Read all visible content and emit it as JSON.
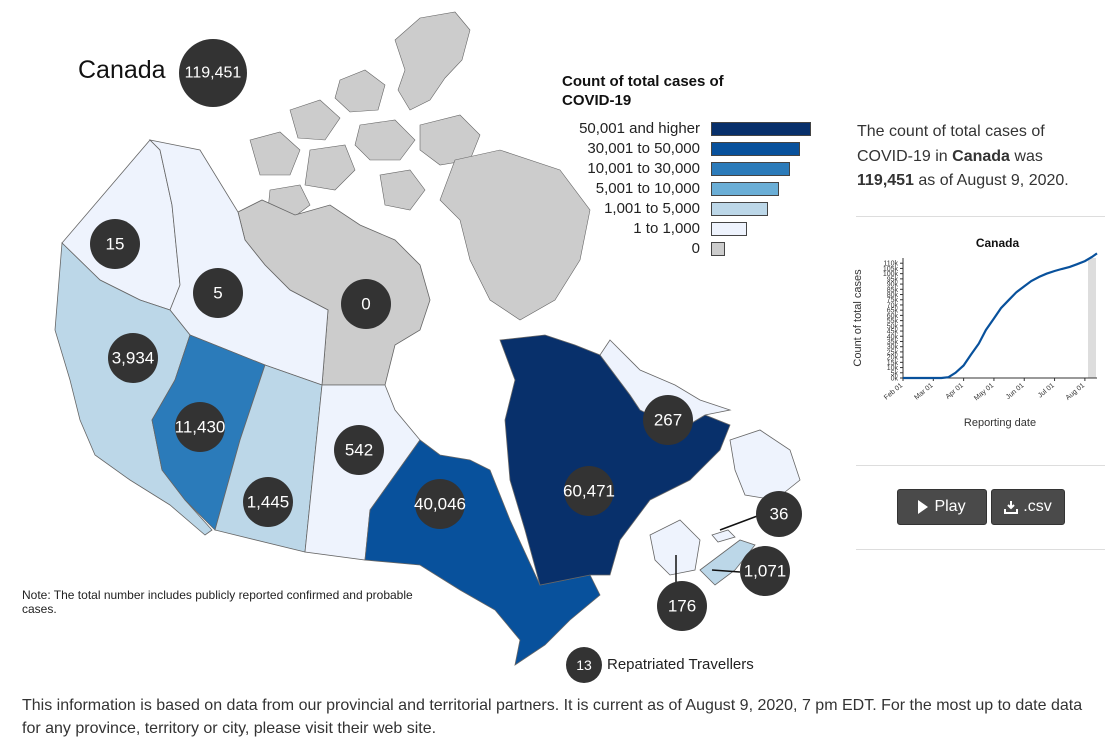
{
  "title": "Canada",
  "total_badge": "119,451",
  "legend": {
    "title": "Count of total cases of COVID-19",
    "items": [
      {
        "label": "50,001 and higher",
        "color": "#08306b",
        "bar_ratio": 1.0
      },
      {
        "label": "30,001 to 50,000",
        "color": "#08519c",
        "bar_ratio": 0.89
      },
      {
        "label": "10,001 to 30,000",
        "color": "#2b7bba",
        "bar_ratio": 0.79
      },
      {
        "label": "5,001 to 10,000",
        "color": "#6aaed6",
        "bar_ratio": 0.68
      },
      {
        "label": "1,001 to 5,000",
        "color": "#bcd7e8",
        "bar_ratio": 0.57
      },
      {
        "label": "1 to 1,000",
        "color": "#eef3fd",
        "bar_ratio": 0.36
      },
      {
        "label": "0",
        "color": "#cccccc",
        "bar_ratio": 0.14
      }
    ]
  },
  "regions": [
    {
      "name": "Yukon",
      "value": "15",
      "color": "#eef3fd"
    },
    {
      "name": "Northwest Territories",
      "value": "5",
      "color": "#eef3fd"
    },
    {
      "name": "Nunavut",
      "value": "0",
      "color": "#cccccc"
    },
    {
      "name": "British Columbia",
      "value": "3,934",
      "color": "#bcd7e8"
    },
    {
      "name": "Alberta",
      "value": "11,430",
      "color": "#2b7bba"
    },
    {
      "name": "Saskatchewan",
      "value": "1,445",
      "color": "#bcd7e8"
    },
    {
      "name": "Manitoba",
      "value": "542",
      "color": "#eef3fd"
    },
    {
      "name": "Ontario",
      "value": "40,046",
      "color": "#08519c"
    },
    {
      "name": "Quebec",
      "value": "60,471",
      "color": "#08306b"
    },
    {
      "name": "Newfoundland and Labrador",
      "value": "267",
      "color": "#eef3fd"
    },
    {
      "name": "Prince Edward Island",
      "value": "36",
      "color": "#eef3fd"
    },
    {
      "name": "Nova Scotia",
      "value": "1,071",
      "color": "#bcd7e8"
    },
    {
      "name": "New Brunswick",
      "value": "176",
      "color": "#eef3fd"
    }
  ],
  "repatriated": {
    "value": "13",
    "label": "Repatriated Travellers"
  },
  "summary": {
    "prefix": "The count of total cases of COVID-19 in ",
    "place": "Canada",
    "middle": " was ",
    "count": "119,451",
    "suffix": " as of August 9, 2020."
  },
  "trend_chart": {
    "title": "Canada",
    "ylabel": "Count of total cases",
    "xlabel": "Reporting date",
    "y_ticks": [
      "0k",
      "5k",
      "10k",
      "15k",
      "20k",
      "25k",
      "30k",
      "35k",
      "40k",
      "45k",
      "50k",
      "55k",
      "60k",
      "65k",
      "70k",
      "75k",
      "80k",
      "85k",
      "90k",
      "95k",
      "100k",
      "105k",
      "110k"
    ],
    "x_ticks": [
      "Feb 01",
      "Mar 01",
      "Apr 01",
      "May 01",
      "Jun 01",
      "Jul 01",
      "Aug 01"
    ]
  },
  "chart_data": {
    "type": "line",
    "title": "Canada",
    "xlabel": "Reporting date",
    "ylabel": "Count of total cases",
    "x": [
      0,
      10,
      20,
      30,
      38,
      45,
      52,
      60,
      67,
      75,
      82,
      90,
      97,
      105,
      112,
      120,
      127,
      135,
      142,
      150,
      157,
      165,
      172,
      180,
      187,
      192
    ],
    "y": [
      0,
      0,
      0,
      0,
      30,
      800,
      5000,
      12000,
      22000,
      33000,
      46000,
      57000,
      67000,
      75000,
      82000,
      88000,
      93000,
      97000,
      100000,
      102500,
      104500,
      106500,
      109000,
      112000,
      116000,
      119451
    ],
    "x_ticks": [
      "Feb 01",
      "Mar 01",
      "Apr 01",
      "May 01",
      "Jun 01",
      "Jul 01",
      "Aug 01"
    ],
    "ylim": [
      0,
      115000
    ],
    "grid": false,
    "series": [
      {
        "name": "Canada",
        "color": "#08519c"
      }
    ]
  },
  "buttons": {
    "play": "Play",
    "csv": ".csv"
  },
  "note": "Note: The total number includes publicly reported confirmed and probable cases.",
  "footer": "This information is based on data from our provincial and territorial partners. It is current as of August 9, 2020, 7 pm EDT. For the most up to date data for any province, territory or city, please visit their web site."
}
